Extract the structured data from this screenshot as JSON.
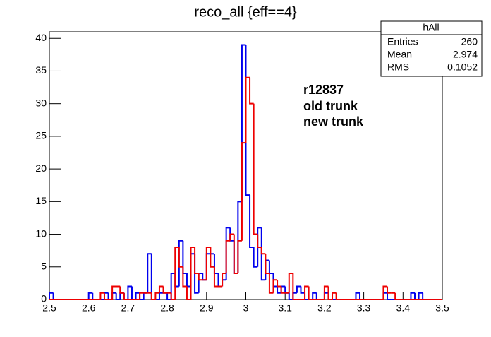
{
  "chart_data": {
    "type": "histogram",
    "title": "reco_all {eff==4}",
    "bins": [
      2.5,
      2.51,
      2.52,
      2.53,
      2.54,
      2.55,
      2.56,
      2.57,
      2.58,
      2.59,
      2.6,
      2.61,
      2.62,
      2.63,
      2.64,
      2.65,
      2.66,
      2.67,
      2.68,
      2.69,
      2.7,
      2.71,
      2.72,
      2.73,
      2.74,
      2.75,
      2.76,
      2.77,
      2.78,
      2.79,
      2.8,
      2.81,
      2.82,
      2.83,
      2.84,
      2.85,
      2.86,
      2.87,
      2.88,
      2.89,
      2.9,
      2.91,
      2.92,
      2.93,
      2.94,
      2.95,
      2.96,
      2.97,
      2.98,
      2.99,
      3,
      3.01,
      3.02,
      3.03,
      3.04,
      3.05,
      3.06,
      3.07,
      3.08,
      3.09,
      3.1,
      3.11,
      3.12,
      3.13,
      3.14,
      3.15,
      3.16,
      3.17,
      3.18,
      3.19,
      3.2,
      3.21,
      3.22,
      3.23,
      3.24,
      3.25,
      3.26,
      3.27,
      3.28,
      3.29,
      3.3,
      3.31,
      3.32,
      3.33,
      3.34,
      3.35,
      3.36,
      3.37,
      3.38,
      3.39,
      3.4,
      3.41,
      3.42,
      3.43,
      3.44,
      3.45,
      3.46,
      3.47,
      3.48,
      3.49,
      3.5
    ],
    "series": [
      {
        "name": "old trunk",
        "color": "#0000ee",
        "values": [
          1,
          0,
          0,
          0,
          0,
          0,
          0,
          0,
          0,
          0,
          1,
          0,
          0,
          0,
          1,
          0,
          1,
          0,
          1,
          0,
          2,
          0,
          1,
          0,
          1,
          7,
          0,
          0,
          1,
          1,
          0,
          4,
          2,
          9,
          4,
          2,
          7,
          1,
          4,
          3,
          7,
          7,
          4,
          2,
          3,
          11,
          9,
          4,
          15,
          39,
          16,
          8,
          5,
          11,
          3,
          6,
          4,
          2,
          1,
          2,
          1,
          0,
          1,
          2,
          1,
          0,
          0,
          1,
          0,
          0,
          1,
          0,
          0,
          0,
          0,
          0,
          0,
          0,
          1,
          0,
          0,
          0,
          0,
          0,
          0,
          1,
          0,
          0,
          0,
          0,
          0,
          0,
          1,
          0,
          1,
          0,
          0,
          0,
          0,
          0
        ]
      },
      {
        "name": "new trunk",
        "color": "#ee0000",
        "values": [
          0,
          0,
          0,
          0,
          0,
          0,
          0,
          0,
          0,
          0,
          0,
          0,
          0,
          1,
          0,
          0,
          2,
          2,
          1,
          0,
          0,
          0,
          0,
          1,
          1,
          1,
          0,
          1,
          2,
          1,
          1,
          0,
          8,
          5,
          2,
          0,
          8,
          4,
          3,
          3,
          8,
          5,
          2,
          2,
          4,
          9,
          10,
          4,
          9,
          24,
          34,
          30,
          10,
          8,
          7,
          4,
          1,
          3,
          2,
          1,
          1,
          4,
          0,
          0,
          0,
          2,
          0,
          0,
          0,
          0,
          2,
          0,
          1,
          0,
          0,
          0,
          0,
          0,
          0,
          0,
          0,
          0,
          0,
          0,
          0,
          2,
          1,
          1,
          0,
          0,
          0,
          0,
          0,
          0,
          0,
          0,
          0,
          0,
          0,
          0
        ]
      }
    ],
    "annotation": "r12837",
    "xlim": [
      2.5,
      3.5
    ],
    "xticks": [
      2.5,
      2.6,
      2.7,
      2.8,
      2.9,
      3,
      3.1,
      3.2,
      3.3,
      3.4,
      3.5
    ],
    "ylim": [
      0,
      41
    ],
    "yticks": [
      0,
      5,
      10,
      15,
      20,
      25,
      30,
      35,
      40
    ],
    "stats": {
      "title": "hAll",
      "rows": [
        [
          "Entries",
          "260"
        ],
        [
          "Mean",
          "2.974"
        ],
        [
          "RMS",
          "0.1052"
        ]
      ]
    }
  }
}
